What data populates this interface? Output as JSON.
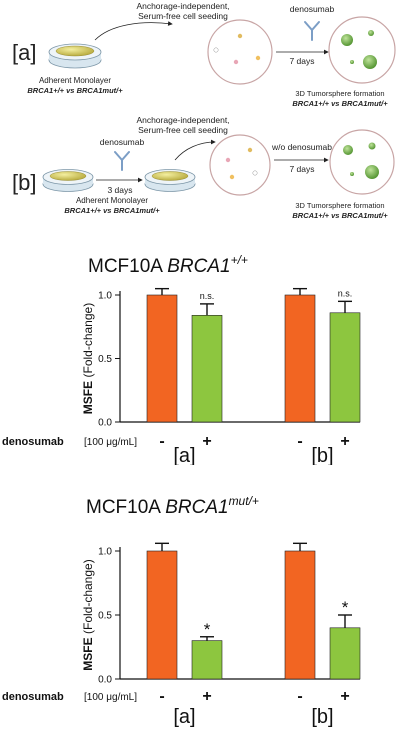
{
  "schematic": {
    "panel_a": {
      "tag": "[a]",
      "seeding": [
        "Anchorage-independent,",
        "Serum-free cell seeding"
      ],
      "drug": "denosumab",
      "days": "7 days",
      "monolayer": "Adherent Monolayer",
      "monolayer_genotype": "BRCA1+/+ vs BRCA1mut/+",
      "formation": "3D Tumorsphere formation",
      "formation_genotype": "BRCA1+/+ vs BRCA1mut/+"
    },
    "panel_b": {
      "tag": "[b]",
      "seeding": [
        "Anchorage-independent,",
        "Serum-free cell seeding"
      ],
      "drug": "denosumab",
      "pre_days": "3 days",
      "without": "w/o denosumab",
      "days": "7 days",
      "monolayer": "Adherent Monolayer",
      "monolayer_genotype": "BRCA1+/+ vs BRCA1mut/+",
      "formation": "3D Tumorsphere formation",
      "formation_genotype": "BRCA1+/+ vs BRCA1mut/+"
    }
  },
  "colors": {
    "control": "#f26522",
    "treated": "#8dc63f"
  },
  "chart_data": [
    {
      "type": "bar",
      "title": "MCF10A BRCA1+/+",
      "title_plain": "MCF10A ",
      "title_gene": "BRCA1",
      "title_sup": "+/+",
      "ylabel": "MSFE (Fold-change)",
      "ylim": [
        0,
        1.0
      ],
      "yticks": [
        "0.0",
        "0.5",
        "1.0"
      ],
      "xrow_label": "denosumab",
      "xrow_unit": "[100 μg/mL]",
      "groups": [
        "[a]",
        "[b]"
      ],
      "categories": [
        "-",
        "+",
        "-",
        "+"
      ],
      "values": [
        1.0,
        0.84,
        1.0,
        0.86
      ],
      "errors": [
        0.05,
        0.09,
        0.05,
        0.09
      ],
      "annotations": [
        "",
        "n.s.",
        "",
        "n.s."
      ]
    },
    {
      "type": "bar",
      "title": "MCF10A BRCA1mut/+",
      "title_plain": "MCF10A ",
      "title_gene": "BRCA1",
      "title_sup": "mut/+",
      "ylabel": "MSFE (Fold-change)",
      "ylim": [
        0,
        1.0
      ],
      "yticks": [
        "0.0",
        "0.5",
        "1.0"
      ],
      "xrow_label": "denosumab",
      "xrow_unit": "[100 μg/mL]",
      "groups": [
        "[a]",
        "[b]"
      ],
      "categories": [
        "-",
        "+",
        "-",
        "+"
      ],
      "values": [
        1.0,
        0.3,
        1.0,
        0.4
      ],
      "errors": [
        0.06,
        0.03,
        0.06,
        0.1
      ],
      "annotations": [
        "",
        "*",
        "",
        "*"
      ]
    }
  ]
}
